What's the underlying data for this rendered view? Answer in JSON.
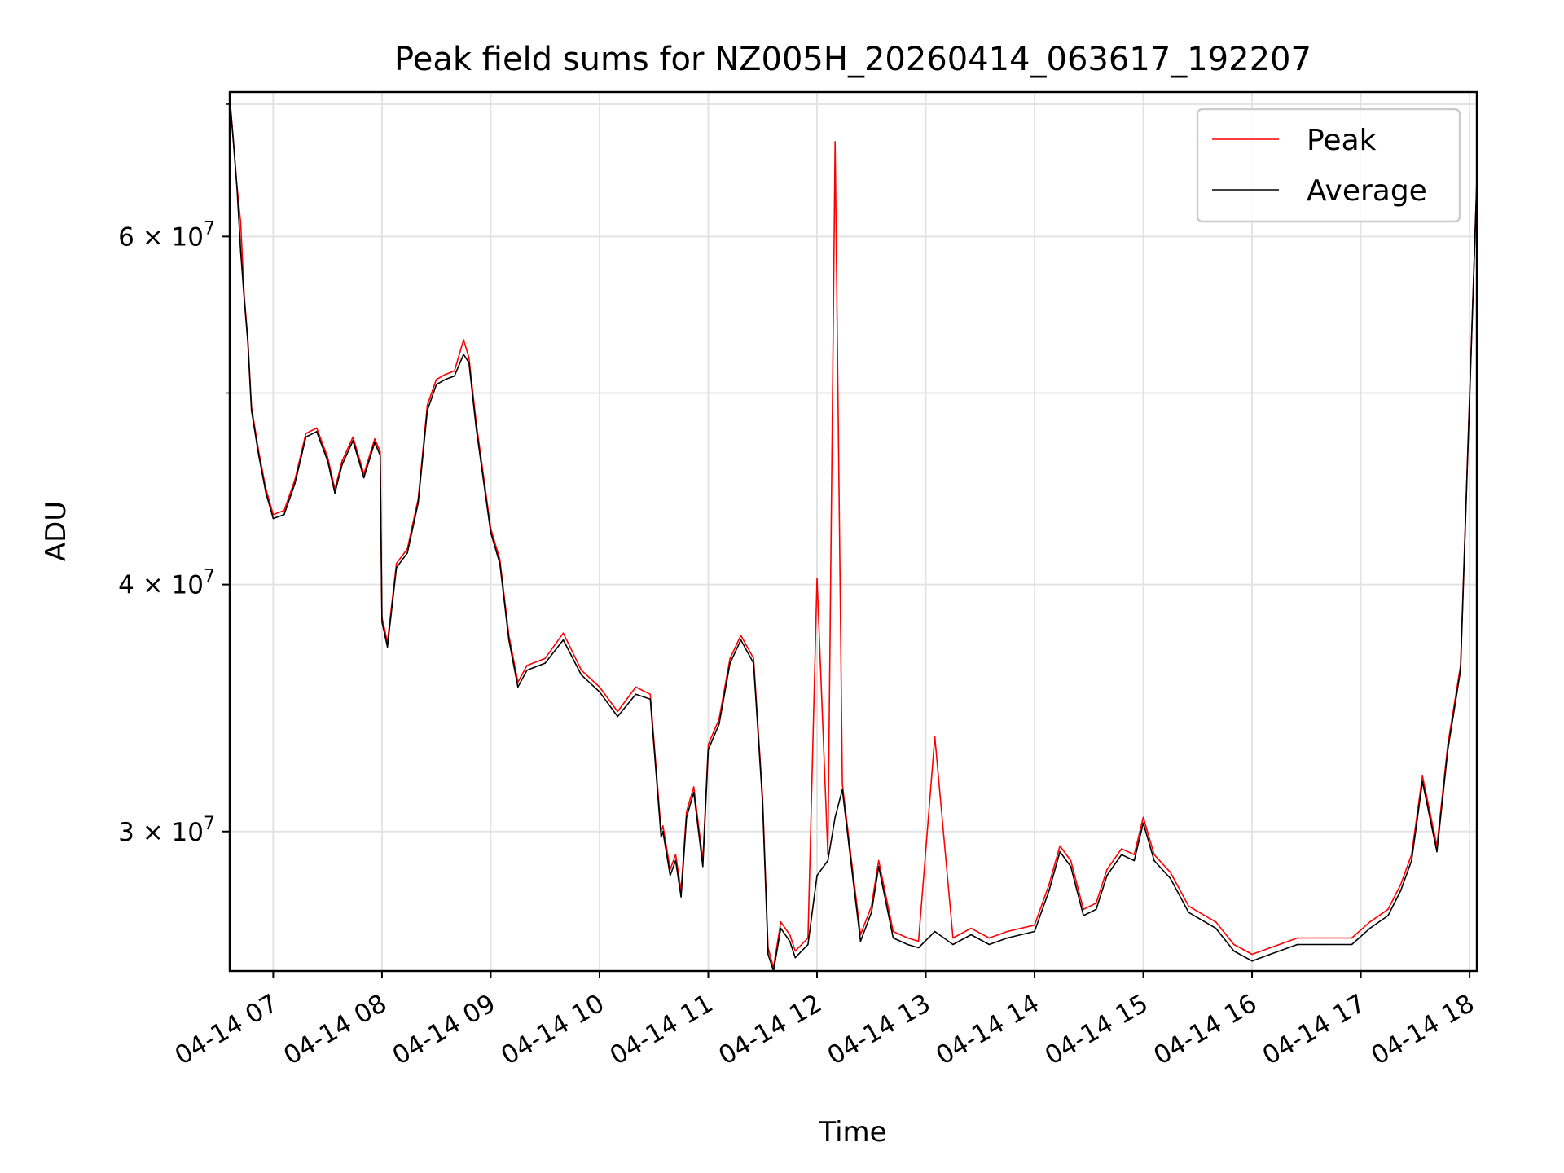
{
  "chart_data": {
    "type": "line",
    "title": "Peak field sums for NZ005H_20260414_063617_192207",
    "xlabel": "Time",
    "ylabel": "ADU",
    "yscale": "log",
    "xlim": [
      "2026-04-14 06:36",
      "2026-04-14 18:04"
    ],
    "ylim": [
      25500000,
      71000000
    ],
    "grid": true,
    "legend_position": "upper right",
    "x_ticks": [
      "04-14 07",
      "04-14 08",
      "04-14 09",
      "04-14 10",
      "04-14 11",
      "04-14 12",
      "04-14 13",
      "04-14 14",
      "04-14 15",
      "04-14 16",
      "04-14 17",
      "04-14 18"
    ],
    "y_ticks": [
      {
        "value": 30000000,
        "mantissa": "3",
        "exponent": "7"
      },
      {
        "value": 40000000,
        "mantissa": "4",
        "exponent": "7"
      },
      {
        "value": 60000000,
        "mantissa": "6",
        "exponent": "7"
      }
    ],
    "y_minor_ticks": [
      50000000,
      70000000
    ],
    "x": [
      "06:36",
      "06:38",
      "06:40",
      "06:42",
      "06:44",
      "06:46",
      "06:48",
      "06:52",
      "06:56",
      "07:00",
      "07:06",
      "07:12",
      "07:18",
      "07:24",
      "07:30",
      "07:34",
      "07:38",
      "07:44",
      "07:50",
      "07:56",
      "07:59",
      "08:00",
      "08:03",
      "08:08",
      "08:14",
      "08:20",
      "08:25",
      "08:30",
      "08:35",
      "08:40",
      "08:45",
      "08:48",
      "08:52",
      "09:00",
      "09:05",
      "09:10",
      "09:15",
      "09:20",
      "09:30",
      "09:40",
      "09:50",
      "10:00",
      "10:10",
      "10:20",
      "10:28",
      "10:34",
      "10:35",
      "10:39",
      "10:42",
      "10:45",
      "10:48",
      "10:52",
      "10:57",
      "11:00",
      "11:06",
      "11:12",
      "11:18",
      "11:25",
      "11:30",
      "11:33",
      "11:36",
      "11:40",
      "11:45",
      "11:48",
      "11:55",
      "12:00",
      "12:06",
      "12:10",
      "12:14",
      "12:20",
      "12:24",
      "12:30",
      "12:34",
      "12:42",
      "12:50",
      "12:56",
      "13:05",
      "13:15",
      "13:25",
      "13:35",
      "13:45",
      "14:00",
      "14:08",
      "14:14",
      "14:20",
      "14:27",
      "14:34",
      "14:40",
      "14:48",
      "14:55",
      "15:00",
      "15:06",
      "15:15",
      "15:25",
      "15:40",
      "15:50",
      "16:00",
      "16:10",
      "16:25",
      "16:40",
      "16:55",
      "17:05",
      "17:15",
      "17:22",
      "17:28",
      "17:34",
      "17:42",
      "17:48",
      "17:55",
      "18:04"
    ],
    "series": [
      {
        "name": "Average",
        "color": "#000000",
        "values": [
          70500000,
          67000000,
          63500000,
          59000000,
          55800000,
          53000000,
          49000000,
          46500000,
          44500000,
          43200000,
          43400000,
          45000000,
          47500000,
          47800000,
          46200000,
          44500000,
          46000000,
          47300000,
          45300000,
          47200000,
          46500000,
          38300000,
          37200000,
          40800000,
          41500000,
          44000000,
          49000000,
          50500000,
          50800000,
          51000000,
          52300000,
          51800000,
          48000000,
          42500000,
          41000000,
          37500000,
          35500000,
          36200000,
          36500000,
          37500000,
          36000000,
          35300000,
          34300000,
          35200000,
          35000000,
          29800000,
          30000000,
          28500000,
          29000000,
          27800000,
          30500000,
          31400000,
          28800000,
          33000000,
          34000000,
          36500000,
          37500000,
          36500000,
          31000000,
          26000000,
          25500000,
          26800000,
          26400000,
          25900000,
          26300000,
          28500000,
          29000000,
          30500000,
          31500000,
          28300000,
          26400000,
          27300000,
          28800000,
          26500000,
          26300000,
          26200000,
          26700000,
          26300000,
          26600000,
          26300000,
          26500000,
          26700000,
          28000000,
          29300000,
          28800000,
          27200000,
          27400000,
          28500000,
          29200000,
          29000000,
          30300000,
          29000000,
          28400000,
          27300000,
          26800000,
          26100000,
          25800000,
          26000000,
          26300000,
          26300000,
          26300000,
          26800000,
          27200000,
          28000000,
          29000000,
          31800000,
          29300000,
          33000000,
          36200000,
          64000000
        ]
      },
      {
        "name": "Peak",
        "color": "#ff0000",
        "values": [
          70600000,
          67100000,
          63600000,
          61000000,
          56000000,
          53200000,
          49200000,
          46700000,
          44700000,
          43400000,
          43600000,
          45200000,
          47700000,
          48000000,
          46400000,
          44700000,
          46200000,
          47500000,
          45500000,
          47400000,
          46700000,
          38500000,
          37400000,
          41000000,
          41700000,
          44200000,
          49300000,
          50800000,
          51100000,
          51300000,
          53200000,
          52100000,
          48300000,
          42700000,
          41200000,
          37700000,
          35700000,
          36400000,
          36700000,
          37800000,
          36200000,
          35500000,
          34500000,
          35500000,
          35200000,
          30000000,
          30200000,
          28700000,
          29200000,
          28000000,
          30700000,
          31600000,
          29000000,
          33200000,
          34200000,
          36700000,
          37700000,
          36700000,
          31200000,
          26200000,
          25600000,
          27000000,
          26600000,
          26100000,
          26500000,
          40300000,
          29200000,
          67000000,
          31700000,
          28500000,
          26600000,
          27500000,
          29000000,
          26700000,
          26500000,
          26400000,
          33500000,
          26500000,
          26800000,
          26500000,
          26700000,
          26900000,
          28200000,
          29500000,
          29000000,
          27400000,
          27600000,
          28700000,
          29400000,
          29200000,
          30500000,
          29200000,
          28600000,
          27500000,
          27000000,
          26300000,
          26000000,
          26200000,
          26500000,
          26500000,
          26500000,
          27000000,
          27400000,
          28200000,
          29200000,
          32000000,
          29500000,
          33200000,
          36400000,
          64100000
        ]
      }
    ]
  }
}
